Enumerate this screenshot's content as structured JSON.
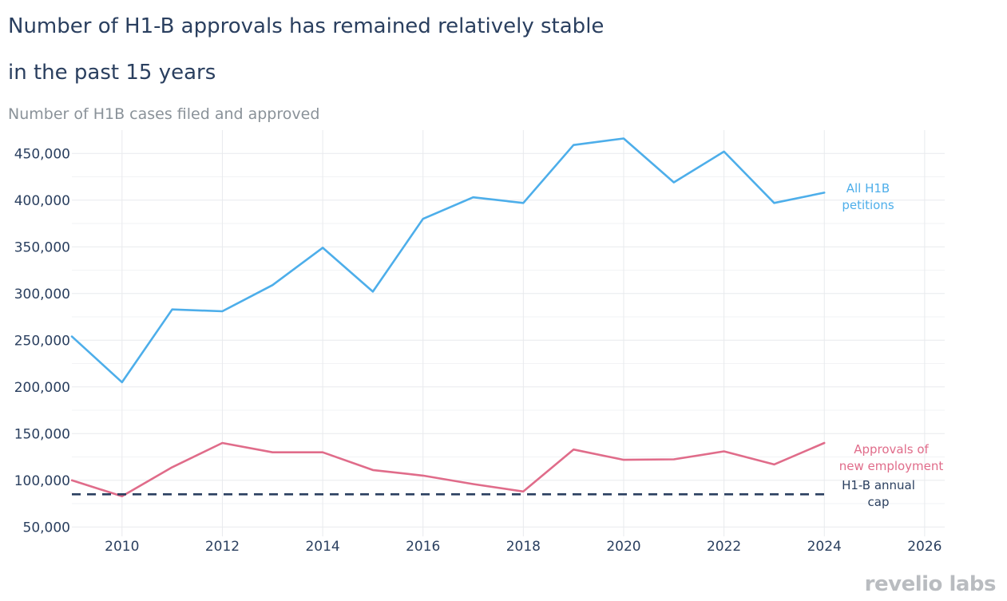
{
  "title_line1": "Number of H1-B approvals has remained relatively stable",
  "title_line2": "in the past 15 years",
  "subtitle": "Number of H1B cases filed and approved",
  "logo_text": "revelio labs",
  "colors": {
    "all_petitions": "#4daeea",
    "new_employment": "#e06c8a",
    "cap": "#2a3f5f",
    "grid": "#e8eaed",
    "text": "#2a3f5f"
  },
  "chart_data": {
    "type": "line",
    "xlim": [
      2009,
      2026.4
    ],
    "ylim": [
      40000,
      475000
    ],
    "x_ticks": [
      2010,
      2012,
      2014,
      2016,
      2018,
      2020,
      2022,
      2024,
      2026
    ],
    "y_ticks": [
      50000,
      100000,
      150000,
      200000,
      250000,
      300000,
      350000,
      400000,
      450000
    ],
    "y_tick_labels": [
      "50,000",
      "100,000",
      "150,000",
      "200,000",
      "250,000",
      "300,000",
      "350,000",
      "400,000",
      "450,000"
    ],
    "grid": true,
    "series": [
      {
        "name": "All H1B petitions",
        "label_lines": [
          "All H1B",
          "petitions"
        ],
        "style": "solid",
        "x": [
          2009,
          2010,
          2011,
          2012,
          2013,
          2014,
          2015,
          2016,
          2017,
          2018,
          2019,
          2020,
          2021,
          2022,
          2023,
          2024
        ],
        "y": [
          254000,
          205000,
          283000,
          281000,
          309000,
          349000,
          302000,
          380000,
          403000,
          397000,
          459000,
          466000,
          419000,
          452000,
          397000,
          408000
        ]
      },
      {
        "name": "Approvals of new employment",
        "label_lines": [
          "Approvals of",
          "new employment"
        ],
        "style": "solid",
        "x": [
          2009,
          2010,
          2011,
          2012,
          2013,
          2014,
          2015,
          2016,
          2017,
          2018,
          2019,
          2020,
          2021,
          2022,
          2023,
          2024
        ],
        "y": [
          100000,
          83000,
          114000,
          140000,
          130000,
          130000,
          111000,
          105000,
          96000,
          88000,
          133000,
          122000,
          122500,
          131000,
          117000,
          140000
        ]
      },
      {
        "name": "H1-B annual cap",
        "label_lines": [
          "H1-B annual",
          "cap"
        ],
        "style": "dashed",
        "x": [
          2009,
          2024
        ],
        "y": [
          85000,
          85000
        ]
      }
    ]
  }
}
